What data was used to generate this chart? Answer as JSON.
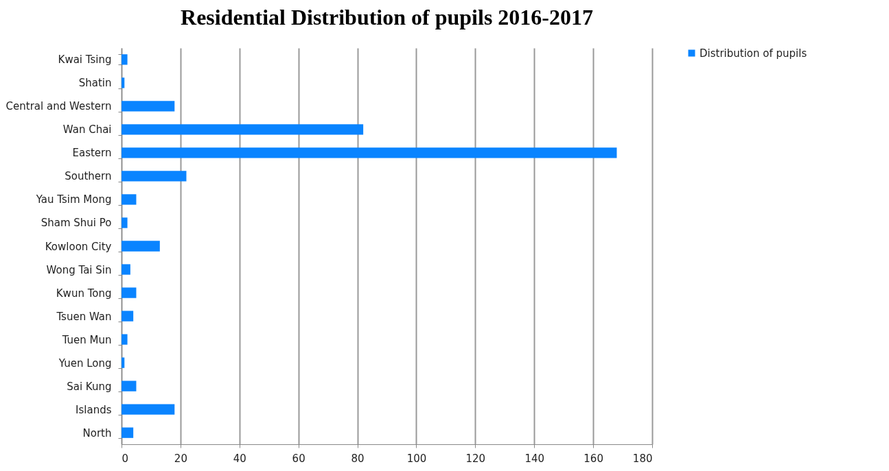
{
  "chart_data": {
    "type": "bar",
    "title": "Residential Distribution of pupils 2016-2017",
    "orientation": "horizontal",
    "categories": [
      "Kwai Tsing",
      "Shatin",
      "Central and Western",
      "Wan Chai",
      "Eastern",
      "Southern",
      "Yau Tsim Mong",
      "Sham Shui Po",
      "Kowloon City",
      "Wong Tai Sin",
      "Kwun Tong",
      "Tsuen Wan",
      "Tuen Mun",
      "Yuen Long",
      "Sai Kung",
      "Islands",
      "North"
    ],
    "series": [
      {
        "name": "Distribution of pupils",
        "color": "#0a84ff",
        "values": [
          2,
          1,
          18,
          82,
          168,
          22,
          5,
          2,
          13,
          3,
          5,
          4,
          2,
          1,
          5,
          18,
          4
        ]
      }
    ],
    "xlim": [
      0,
      180
    ],
    "xticks": [
      0,
      20,
      40,
      60,
      80,
      100,
      120,
      140,
      160,
      180
    ],
    "grid": "x",
    "legend": "right"
  }
}
